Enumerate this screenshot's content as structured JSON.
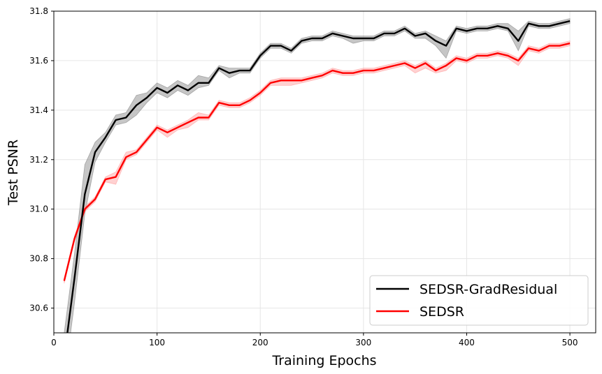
{
  "chart_data": {
    "type": "line",
    "xlabel": "Training Epochs",
    "ylabel": "Test PSNR",
    "xlim": [
      0,
      525
    ],
    "ylim": [
      30.5,
      31.8
    ],
    "xticks": [
      0,
      100,
      200,
      300,
      400,
      500
    ],
    "yticks": [
      30.6,
      30.8,
      31.0,
      31.2,
      31.4,
      31.6,
      31.8
    ],
    "xtick_labels": [
      "0",
      "100",
      "200",
      "300",
      "400",
      "500"
    ],
    "ytick_labels": [
      "30.6",
      "30.8",
      "31.0",
      "31.2",
      "31.4",
      "31.6",
      "31.8"
    ],
    "grid": true,
    "legend_position": "lower-right",
    "x": [
      10,
      20,
      30,
      40,
      50,
      60,
      70,
      80,
      90,
      100,
      110,
      120,
      130,
      140,
      150,
      160,
      170,
      180,
      190,
      200,
      210,
      220,
      230,
      240,
      250,
      260,
      270,
      280,
      290,
      300,
      310,
      320,
      330,
      340,
      350,
      360,
      370,
      380,
      390,
      400,
      410,
      420,
      430,
      440,
      450,
      460,
      470,
      480,
      490,
      500
    ],
    "series": [
      {
        "name": "SEDSR-GradResidual",
        "color": "#000000",
        "band_color": "#808080",
        "values": [
          30.4,
          30.72,
          31.06,
          31.23,
          31.29,
          31.36,
          31.37,
          31.42,
          31.45,
          31.49,
          31.47,
          31.5,
          31.48,
          31.51,
          31.51,
          31.57,
          31.55,
          31.56,
          31.56,
          31.62,
          31.66,
          31.66,
          31.64,
          31.68,
          31.69,
          31.69,
          31.71,
          31.7,
          31.69,
          31.69,
          31.69,
          31.71,
          31.71,
          31.73,
          31.7,
          31.71,
          31.68,
          31.66,
          31.73,
          31.72,
          31.73,
          31.73,
          31.74,
          31.73,
          31.68,
          31.75,
          31.74,
          31.74,
          31.75,
          31.76
        ],
        "lower": [
          30.3,
          30.62,
          30.98,
          31.19,
          31.27,
          31.34,
          31.35,
          31.38,
          31.43,
          31.47,
          31.45,
          31.48,
          31.46,
          31.49,
          31.5,
          31.56,
          31.53,
          31.55,
          31.55,
          31.61,
          31.65,
          31.65,
          31.63,
          31.67,
          31.68,
          31.68,
          31.7,
          31.69,
          31.67,
          31.68,
          31.68,
          31.7,
          31.7,
          31.72,
          31.69,
          31.69,
          31.66,
          31.61,
          31.72,
          31.71,
          31.72,
          31.72,
          31.73,
          31.72,
          31.64,
          31.74,
          31.73,
          31.73,
          31.74,
          31.75
        ],
        "upper": [
          30.5,
          30.82,
          31.18,
          31.27,
          31.31,
          31.38,
          31.39,
          31.46,
          31.47,
          31.51,
          31.49,
          31.52,
          31.5,
          31.54,
          31.53,
          31.58,
          31.57,
          31.57,
          31.57,
          31.63,
          31.67,
          31.67,
          31.65,
          31.69,
          31.7,
          31.7,
          31.72,
          31.71,
          31.7,
          31.7,
          31.7,
          31.72,
          31.72,
          31.74,
          31.71,
          31.72,
          31.7,
          31.68,
          31.74,
          31.73,
          31.74,
          31.74,
          31.75,
          31.75,
          31.72,
          31.76,
          31.75,
          31.75,
          31.76,
          31.77
        ]
      },
      {
        "name": "SEDSR",
        "color": "#ff0000",
        "band_color": "#ff9a9a",
        "values": [
          30.71,
          30.88,
          31.0,
          31.04,
          31.12,
          31.13,
          31.21,
          31.23,
          31.28,
          31.33,
          31.31,
          31.33,
          31.35,
          31.37,
          31.37,
          31.43,
          31.42,
          31.42,
          31.44,
          31.47,
          31.51,
          31.52,
          31.52,
          31.52,
          31.53,
          31.54,
          31.56,
          31.55,
          31.55,
          31.56,
          31.56,
          31.57,
          31.58,
          31.59,
          31.57,
          31.59,
          31.56,
          31.58,
          31.61,
          31.6,
          31.62,
          31.62,
          31.63,
          31.62,
          31.6,
          31.65,
          31.64,
          31.66,
          31.66,
          31.67
        ],
        "lower": [
          30.7,
          30.87,
          30.99,
          31.03,
          31.11,
          31.1,
          31.2,
          31.22,
          31.27,
          31.32,
          31.29,
          31.32,
          31.33,
          31.36,
          31.36,
          31.42,
          31.41,
          31.41,
          31.43,
          31.46,
          31.5,
          31.5,
          31.5,
          31.51,
          31.52,
          31.53,
          31.55,
          31.54,
          31.54,
          31.55,
          31.55,
          31.56,
          31.57,
          31.58,
          31.55,
          31.57,
          31.55,
          31.56,
          31.6,
          31.59,
          31.61,
          31.61,
          31.62,
          31.61,
          31.58,
          31.64,
          31.63,
          31.65,
          31.65,
          31.66
        ],
        "upper": [
          30.72,
          30.89,
          31.01,
          31.05,
          31.13,
          31.15,
          31.23,
          31.24,
          31.29,
          31.34,
          31.32,
          31.34,
          31.36,
          31.39,
          31.38,
          31.44,
          31.43,
          31.43,
          31.45,
          31.48,
          31.52,
          31.53,
          31.53,
          31.53,
          31.54,
          31.55,
          31.57,
          31.56,
          31.56,
          31.57,
          31.57,
          31.58,
          31.59,
          31.6,
          31.58,
          31.6,
          31.57,
          31.59,
          31.62,
          31.61,
          31.63,
          31.63,
          31.64,
          31.63,
          31.61,
          31.66,
          31.65,
          31.67,
          31.67,
          31.68
        ]
      }
    ]
  }
}
